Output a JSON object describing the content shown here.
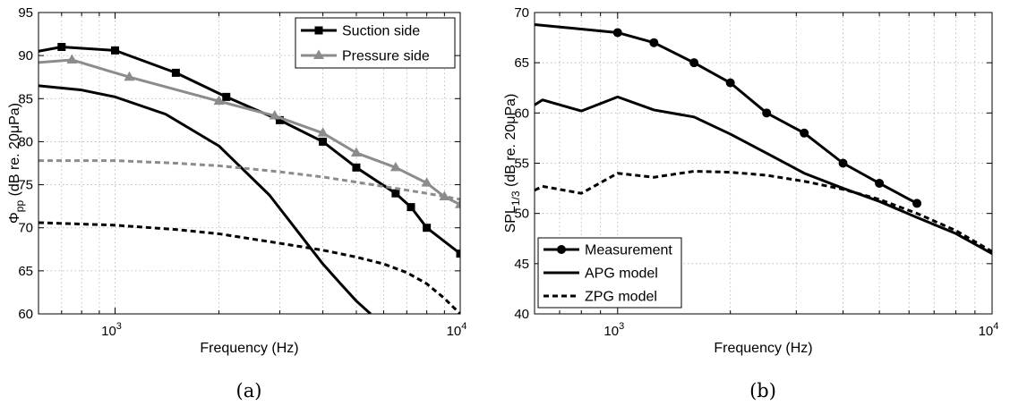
{
  "chart_data": [
    {
      "type": "line",
      "caption": "(a)",
      "xlabel": "Frequency (Hz)",
      "ylabel": "Φ_pp (dB re. 20μPa)",
      "ylabel_main": "Φ",
      "ylabel_sub": "pp",
      "ylabel_rest": " (dB re. 20μPa)",
      "xscale": "log",
      "xlim": [
        600,
        10000
      ],
      "ylim": [
        60,
        95
      ],
      "yticks": [
        60,
        65,
        70,
        75,
        80,
        85,
        90,
        95
      ],
      "xticks": [
        {
          "value": 1000,
          "base": "10",
          "exp": "3"
        },
        {
          "value": 10000,
          "base": "10",
          "exp": "4"
        }
      ],
      "grid": true,
      "legend_position": "top-right",
      "legend": [
        "Suction side",
        "Pressure side"
      ],
      "series": [
        {
          "name": "Suction side",
          "color": "#000000",
          "marker": "square",
          "dash": "",
          "x": [
            600,
            700,
            1000,
            1500,
            2100,
            3000,
            4000,
            5000,
            6500,
            7200,
            8000,
            10000
          ],
          "y": [
            90.5,
            91.0,
            90.6,
            88.0,
            85.2,
            82.5,
            80.0,
            77.0,
            74.0,
            72.4,
            70.0,
            67.0
          ]
        },
        {
          "name": "Pressure side",
          "color": "#8c8c8c",
          "marker": "triangle",
          "dash": "",
          "x": [
            600,
            750,
            1100,
            2000,
            2900,
            4000,
            5000,
            6500,
            8000,
            9000,
            10000
          ],
          "y": [
            89.2,
            89.5,
            87.5,
            84.7,
            83.0,
            81.0,
            78.7,
            77.0,
            75.2,
            73.6,
            72.7
          ]
        },
        {
          "color": "#000000",
          "marker": "none",
          "dash": "",
          "x": [
            600,
            800,
            1000,
            1400,
            2000,
            2800,
            3500,
            4000,
            4500,
            5000,
            5500
          ],
          "y": [
            86.5,
            86.0,
            85.2,
            83.2,
            79.5,
            73.8,
            68.8,
            65.8,
            63.5,
            61.5,
            60.0
          ]
        },
        {
          "color": "#000000",
          "marker": "none",
          "dash": "6 4",
          "x": [
            600,
            1000,
            1500,
            2000,
            3000,
            4000,
            5000,
            6000,
            7000,
            8000,
            9000,
            10000
          ],
          "y": [
            70.6,
            70.3,
            69.8,
            69.3,
            68.2,
            67.4,
            66.6,
            65.8,
            64.8,
            63.5,
            61.8,
            60.0
          ]
        },
        {
          "color": "#8c8c8c",
          "marker": "none",
          "dash": "6 4",
          "x": [
            600,
            1000,
            1500,
            2000,
            3000,
            4000,
            5000,
            6000,
            8000,
            10000
          ],
          "y": [
            77.8,
            77.8,
            77.5,
            77.2,
            76.5,
            75.9,
            75.3,
            74.8,
            74.0,
            73.3
          ]
        }
      ]
    },
    {
      "type": "line",
      "caption": "(b)",
      "xlabel": "Frequency (Hz)",
      "ylabel": "SPL_1/3 (dB re. 20μPa)",
      "ylabel_main": "SPL",
      "ylabel_sub": "1/3",
      "ylabel_rest": " (dB re. 20μPa)",
      "xscale": "log",
      "xlim": [
        600,
        10000
      ],
      "ylim": [
        40,
        70
      ],
      "yticks": [
        40,
        45,
        50,
        55,
        60,
        65,
        70
      ],
      "xticks": [
        {
          "value": 1000,
          "base": "10",
          "exp": "3"
        },
        {
          "value": 10000,
          "base": "10",
          "exp": "4"
        }
      ],
      "grid": true,
      "legend_position": "bottom-left",
      "legend": [
        "Measurement",
        "APG model",
        "ZPG model"
      ],
      "series": [
        {
          "name": "Measurement",
          "color": "#000000",
          "marker": "circle",
          "dash": "",
          "x": [
            600,
            1000,
            1250,
            1600,
            2000,
            2500,
            3150,
            4000,
            5000,
            6300
          ],
          "y": [
            68.8,
            68.0,
            67.0,
            65.0,
            63.0,
            60.0,
            58.0,
            55.0,
            53.0,
            51.0
          ]
        },
        {
          "name": "APG model",
          "color": "#000000",
          "marker": "none",
          "dash": "",
          "x": [
            600,
            630,
            800,
            1000,
            1250,
            1600,
            2000,
            2500,
            3150,
            4000,
            5000,
            6300,
            8000,
            10000
          ],
          "y": [
            60.8,
            61.3,
            60.2,
            61.6,
            60.3,
            59.6,
            57.9,
            56.0,
            54.0,
            52.5,
            51.2,
            49.6,
            48.0,
            46.0
          ]
        },
        {
          "name": "ZPG model",
          "color": "#000000",
          "marker": "none",
          "dash": "6 4",
          "x": [
            600,
            630,
            800,
            1000,
            1250,
            1600,
            2000,
            2500,
            3150,
            4000,
            5000,
            6300,
            8000,
            10000
          ],
          "y": [
            52.3,
            52.7,
            52.0,
            54.0,
            53.6,
            54.2,
            54.1,
            53.8,
            53.2,
            52.4,
            51.4,
            50.0,
            48.3,
            46.2
          ]
        }
      ]
    }
  ]
}
